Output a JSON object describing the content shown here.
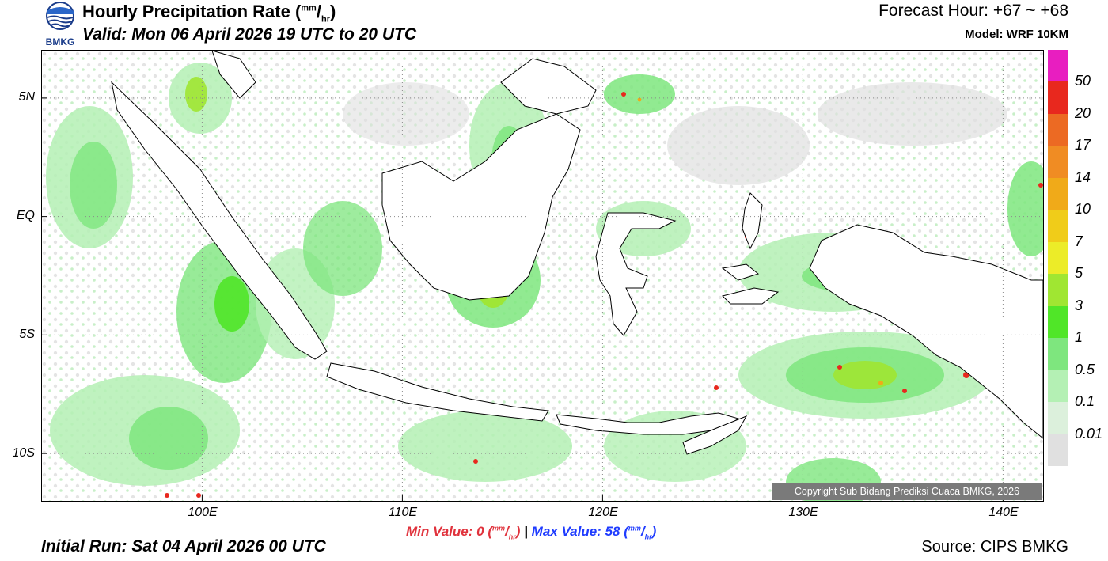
{
  "header": {
    "logo_text": "BMKG",
    "title_main": "Hourly Precipitation Rate (",
    "title_unit_num": "mm",
    "title_unit_den": "hr",
    "title_close": ")",
    "valid": "Valid: Mon 06 April 2026 19 UTC to 20 UTC",
    "forecast_hour": "Forecast Hour: +67 ~ +68",
    "model": "Model: WRF 10KM"
  },
  "map": {
    "lat_labels": [
      "5N",
      "EQ",
      "5S",
      "10S"
    ],
    "lat_values": [
      5,
      0,
      -5,
      -10
    ],
    "lon_labels": [
      "100E",
      "110E",
      "120E",
      "130E",
      "140E"
    ],
    "lon_values": [
      100,
      110,
      120,
      130,
      140
    ],
    "lon_range": [
      92,
      142
    ],
    "lat_range": [
      7,
      -12
    ]
  },
  "colorbar": {
    "labels": [
      "50",
      "20",
      "17",
      "14",
      "10",
      "7",
      "5",
      "3",
      "1",
      "0.5",
      "0.1",
      "0.01"
    ],
    "colors": [
      "#e81ec0",
      "#e8281e",
      "#ec6a23",
      "#f08c23",
      "#f0aa19",
      "#f0cc19",
      "#ecec28",
      "#a0e632",
      "#50e628",
      "#7ee67e",
      "#b4f0b4",
      "#dcf0dc",
      "#e0e0e0"
    ]
  },
  "stats": {
    "min_label": "Min Value:",
    "min_value": "0",
    "max_separator": "|",
    "max_label": "Max Value:",
    "max_value": "58",
    "unit_num": "mm",
    "unit_den": "hr"
  },
  "footer": {
    "initial_run": "Initial Run: Sat 04 April 2026 00 UTC",
    "source": "Source: CIPS BMKG",
    "copyright": "Copyright Sub Bidang Prediksi Cuaca BMKG, 2026"
  }
}
